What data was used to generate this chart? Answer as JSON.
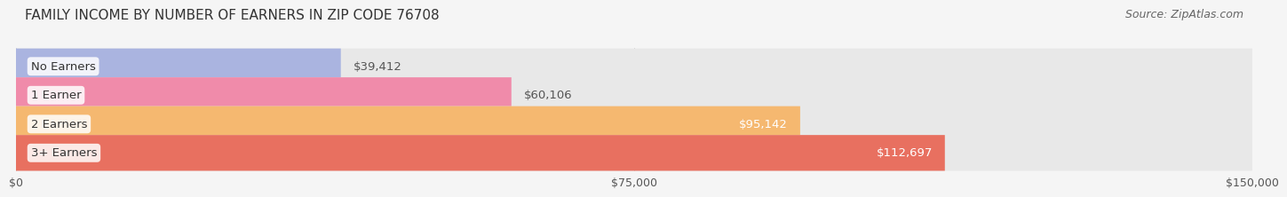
{
  "title": "FAMILY INCOME BY NUMBER OF EARNERS IN ZIP CODE 76708",
  "source": "Source: ZipAtlas.com",
  "categories": [
    "No Earners",
    "1 Earner",
    "2 Earners",
    "3+ Earners"
  ],
  "values": [
    39412,
    60106,
    95142,
    112697
  ],
  "value_labels": [
    "$39,412",
    "$60,106",
    "$95,142",
    "$112,697"
  ],
  "bar_colors": [
    "#aab4e0",
    "#f08baa",
    "#f5b870",
    "#e87060"
  ],
  "bar_bg_color": "#e8e8e8",
  "xlim": [
    0,
    150000
  ],
  "xticks": [
    0,
    75000,
    150000
  ],
  "xtick_labels": [
    "$0",
    "$75,000",
    "$150,000"
  ],
  "title_fontsize": 11,
  "source_fontsize": 9,
  "label_fontsize": 9.5,
  "value_fontsize": 9.5,
  "tick_fontsize": 9,
  "bar_height": 0.62,
  "bg_color": "#f5f5f5",
  "title_color": "#333333",
  "source_color": "#666666",
  "label_color": "#333333",
  "value_color_inside": "#ffffff",
  "value_color_outside": "#555555",
  "inside_threshold": 80000,
  "label_pill_color": "#ffffff"
}
